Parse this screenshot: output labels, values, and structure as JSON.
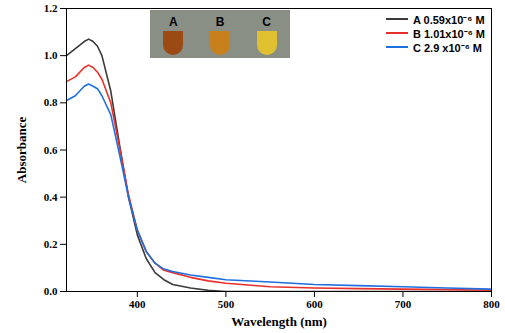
{
  "chart_data": {
    "type": "line",
    "x_label": "Wavelength (nm)",
    "y_label": "Absorbance",
    "annotations": [
      "A",
      "B",
      "C"
    ],
    "x": [
      320,
      330,
      340,
      345,
      350,
      355,
      360,
      370,
      380,
      390,
      400,
      410,
      420,
      430,
      440,
      460,
      480,
      500,
      550,
      600,
      650,
      700,
      750,
      800
    ],
    "series": [
      {
        "name": "A 0.59x10⁻⁶ M",
        "color": "#3a3a3a",
        "values": [
          1.0,
          1.03,
          1.06,
          1.07,
          1.06,
          1.04,
          1.0,
          0.85,
          0.62,
          0.4,
          0.24,
          0.14,
          0.08,
          0.05,
          0.03,
          0.015,
          0.005,
          0.0,
          0.0,
          0.0,
          0.0,
          0.0,
          0.0,
          0.0
        ]
      },
      {
        "name": "B 1.01x10⁻⁶ M",
        "color": "#e8302a",
        "values": [
          0.89,
          0.91,
          0.95,
          0.96,
          0.95,
          0.93,
          0.9,
          0.8,
          0.61,
          0.41,
          0.26,
          0.17,
          0.12,
          0.09,
          0.08,
          0.06,
          0.045,
          0.035,
          0.02,
          0.015,
          0.012,
          0.01,
          0.008,
          0.005
        ]
      },
      {
        "name": "C 2.9 x10⁻⁶ M",
        "color": "#1f6fe0",
        "values": [
          0.81,
          0.83,
          0.87,
          0.88,
          0.87,
          0.86,
          0.83,
          0.75,
          0.58,
          0.4,
          0.26,
          0.17,
          0.12,
          0.095,
          0.085,
          0.07,
          0.06,
          0.05,
          0.04,
          0.03,
          0.025,
          0.02,
          0.015,
          0.01
        ]
      }
    ],
    "xlim": [
      320,
      800
    ],
    "xticks": [
      400,
      500,
      600,
      700,
      800
    ],
    "ylim": [
      0,
      1.2
    ],
    "yticks": [
      {
        "value": 0,
        "label": "0.0"
      },
      0.2,
      0.4,
      0.6,
      0.8,
      {
        "value": 1,
        "label": "1.0"
      },
      1.2
    ],
    "legend": "upper right",
    "grid": false
  }
}
